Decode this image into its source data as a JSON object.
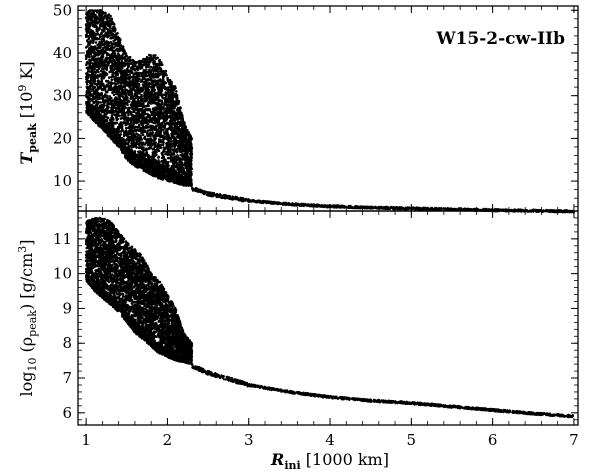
{
  "chart_data": [
    {
      "type": "scatter",
      "annotation": "W15-2-cw-IIb",
      "ylabel": "T_peak [10^9 K]",
      "xlim": [
        0.9,
        7.05
      ],
      "ylim": [
        3,
        51
      ],
      "yticks": [
        10,
        20,
        30,
        40,
        50
      ],
      "series": [
        {
          "points_upper_band": {
            "x": [
              1.0,
              1.1,
              1.2,
              1.3,
              1.4,
              1.5,
              1.6,
              1.7,
              1.8,
              1.9,
              2.0,
              2.1,
              2.2,
              2.3
            ],
            "y_max": [
              50.0,
              50.0,
              50.0,
              49.0,
              44.0,
              40.0,
              38.0,
              38.5,
              40.0,
              39.0,
              35.0,
              32.0,
              24.0,
              20.0
            ]
          },
          "points_lower_band": {
            "x": [
              1.0,
              1.1,
              1.2,
              1.3,
              1.4,
              1.5,
              1.6,
              1.7,
              1.8,
              1.9,
              2.0,
              2.1,
              2.2,
              2.3
            ],
            "y_min": [
              26.0,
              24.0,
              22.0,
              20.0,
              18.0,
              15.0,
              13.5,
              12.5,
              11.5,
              10.5,
              10.0,
              9.5,
              9.0,
              8.8
            ]
          },
          "tail": {
            "x": [
              2.3,
              2.5,
              3.0,
              3.5,
              4.0,
              4.5,
              5.0,
              5.5,
              6.0,
              6.5,
              7.0
            ],
            "y": [
              8.3,
              7.0,
              5.4,
              4.6,
              4.1,
              3.8,
              3.6,
              3.4,
              3.2,
              3.05,
              2.9
            ]
          }
        }
      ]
    },
    {
      "type": "scatter",
      "ylabel": "log10 (rho_peak) [g/cm^3]",
      "xlabel": "R_ini [1000 km]",
      "xlim": [
        0.9,
        7.05
      ],
      "ylim": [
        5.65,
        11.8
      ],
      "xticks": [
        1,
        2,
        3,
        4,
        5,
        6,
        7
      ],
      "yticks": [
        6,
        7,
        8,
        9,
        10,
        11
      ],
      "series": [
        {
          "points_upper_band": {
            "x": [
              1.0,
              1.1,
              1.2,
              1.3,
              1.4,
              1.5,
              1.6,
              1.7,
              1.8,
              1.9,
              2.0,
              2.1,
              2.2,
              2.3
            ],
            "y_max": [
              11.5,
              11.6,
              11.6,
              11.5,
              11.2,
              10.9,
              10.7,
              10.5,
              10.0,
              9.8,
              9.4,
              9.0,
              8.3,
              8.0
            ]
          },
          "points_lower_band": {
            "x": [
              1.0,
              1.1,
              1.2,
              1.3,
              1.4,
              1.5,
              1.6,
              1.7,
              1.8,
              1.9,
              2.0,
              2.1,
              2.2,
              2.3
            ],
            "y_min": [
              9.8,
              9.5,
              9.3,
              9.1,
              8.9,
              8.6,
              8.3,
              8.1,
              7.9,
              7.7,
              7.6,
              7.5,
              7.45,
              7.4
            ]
          },
          "tail": {
            "x": [
              2.3,
              2.5,
              3.0,
              3.5,
              4.0,
              4.5,
              5.0,
              5.5,
              6.0,
              6.5,
              7.0
            ],
            "y": [
              7.35,
              7.15,
              6.8,
              6.6,
              6.45,
              6.35,
              6.28,
              6.18,
              6.08,
              5.98,
              5.9
            ]
          }
        }
      ]
    }
  ],
  "labels": {
    "top_y_main": "T",
    "top_y_sub": "peak",
    "top_y_rest": " [10",
    "top_y_sup": "9",
    "top_y_unit": " K]",
    "bottom_y_main": "log",
    "bottom_y_sub": "10",
    "bottom_y_rest": " (ρ",
    "bottom_y_sub2": "peak",
    "bottom_y_unit": ") [g/cm",
    "bottom_y_sup": "3",
    "bottom_y_close": "]",
    "x_main": "R",
    "x_sub": "ini",
    "x_rest": " [1000 km]"
  }
}
